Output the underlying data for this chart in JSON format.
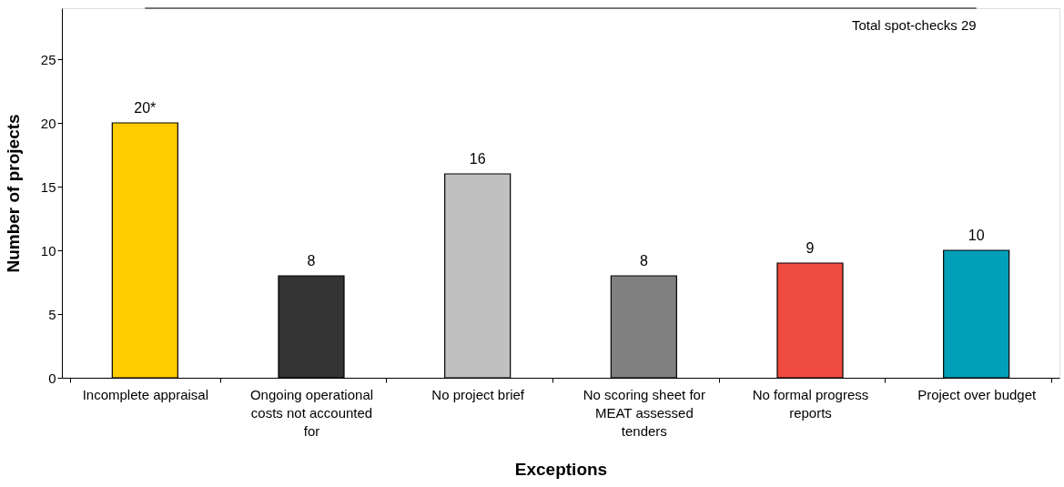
{
  "chart_data": {
    "type": "bar",
    "xlabel": "Exceptions",
    "ylabel": "Number of projects",
    "categories": [
      "Incomplete appraisal",
      "Ongoing operational costs not accounted for",
      "No project brief",
      "No scoring sheet for MEAT assessed tenders",
      "No formal progress reports",
      "Project over budget"
    ],
    "values": [
      20,
      8,
      16,
      8,
      9,
      10
    ],
    "colors": [
      "#ffcc00",
      "#333333",
      "#c0c0c0",
      "#808080",
      "#ef4b3f",
      "#00a0b8"
    ],
    "value_labels": [
      "20*",
      "8",
      "16",
      "8",
      "9",
      "10"
    ],
    "ylim": [
      0,
      29
    ],
    "yticks": [
      0,
      5,
      10,
      15,
      20,
      25
    ],
    "ref_lines": [
      {
        "axis": "y",
        "value": 29,
        "label": "Total spot-checks 29",
        "color": "#000000"
      }
    ],
    "grid": false
  }
}
